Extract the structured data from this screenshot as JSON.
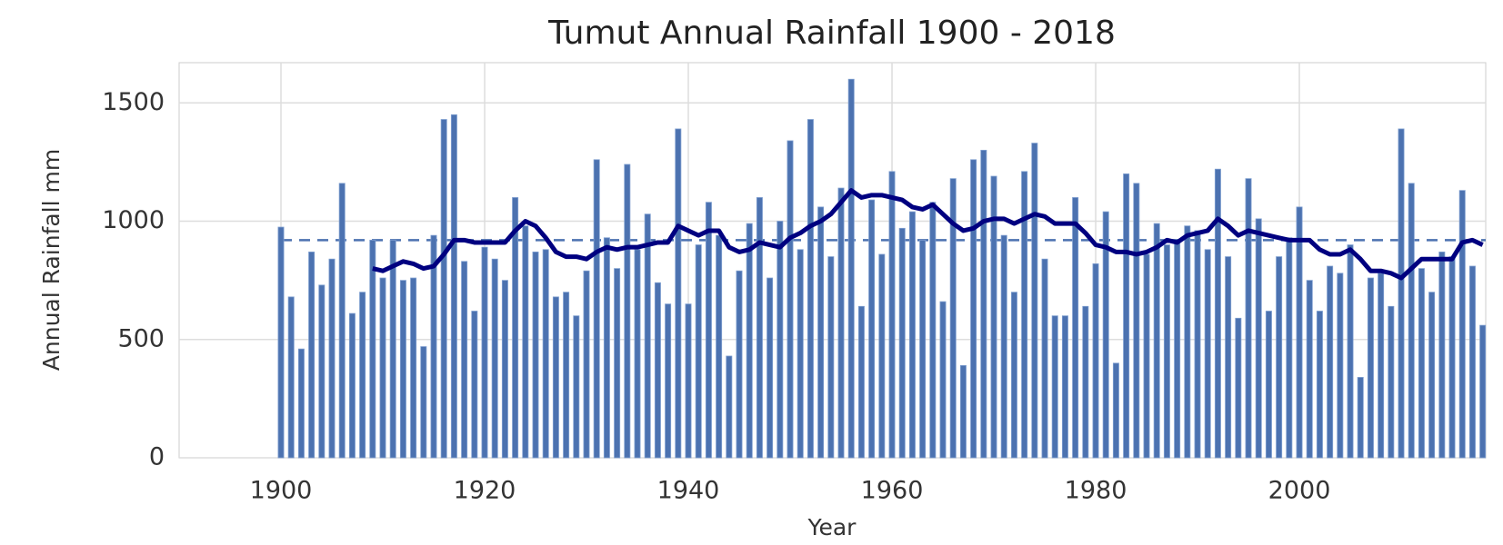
{
  "chart_data": {
    "type": "bar",
    "title": "Tumut Annual Rainfall 1900 - 2018",
    "xlabel": "Year",
    "ylabel": "Annual Rainfall mm",
    "x": [
      1900,
      1901,
      1902,
      1903,
      1904,
      1905,
      1906,
      1907,
      1908,
      1909,
      1910,
      1911,
      1912,
      1913,
      1914,
      1915,
      1916,
      1917,
      1918,
      1919,
      1920,
      1921,
      1922,
      1923,
      1924,
      1925,
      1926,
      1927,
      1928,
      1929,
      1930,
      1931,
      1932,
      1933,
      1934,
      1935,
      1936,
      1937,
      1938,
      1939,
      1940,
      1941,
      1942,
      1943,
      1944,
      1945,
      1946,
      1947,
      1948,
      1949,
      1950,
      1951,
      1952,
      1953,
      1954,
      1955,
      1956,
      1957,
      1958,
      1959,
      1960,
      1961,
      1962,
      1963,
      1964,
      1965,
      1966,
      1967,
      1968,
      1969,
      1970,
      1971,
      1972,
      1973,
      1974,
      1975,
      1976,
      1977,
      1978,
      1979,
      1980,
      1981,
      1982,
      1983,
      1984,
      1985,
      1986,
      1987,
      1988,
      1989,
      1990,
      1991,
      1992,
      1993,
      1994,
      1995,
      1996,
      1997,
      1998,
      1999,
      2000,
      2001,
      2002,
      2003,
      2004,
      2005,
      2006,
      2007,
      2008,
      2009,
      2010,
      2011,
      2012,
      2013,
      2014,
      2015,
      2016,
      2017,
      2018
    ],
    "series": [
      {
        "type": "bar",
        "color": "#4c72b0",
        "values": [
          975,
          680,
          460,
          870,
          730,
          840,
          1160,
          610,
          700,
          920,
          760,
          920,
          750,
          760,
          470,
          940,
          1430,
          1450,
          830,
          620,
          890,
          840,
          750,
          1100,
          980,
          870,
          880,
          680,
          700,
          600,
          790,
          1260,
          930,
          800,
          1240,
          880,
          1030,
          740,
          650,
          1390,
          650,
          900,
          1080,
          940,
          430,
          790,
          990,
          1100,
          760,
          1000,
          1340,
          880,
          1430,
          1060,
          850,
          1140,
          1600,
          640,
          1090,
          860,
          1210,
          970,
          1040,
          920,
          1080,
          660,
          1180,
          390,
          1260,
          1300,
          1190,
          940,
          700,
          1210,
          1330,
          840,
          600,
          600,
          1100,
          640,
          820,
          1040,
          400,
          1200,
          1160,
          860,
          990,
          900,
          920,
          980,
          960,
          880,
          1220,
          850,
          590,
          1180,
          1010,
          620,
          850,
          930,
          1060,
          750,
          620,
          810,
          780,
          900,
          340,
          760,
          780,
          640,
          1390,
          1160,
          800,
          700,
          870,
          850,
          1130,
          810,
          560
        ]
      },
      {
        "type": "line",
        "color": "#000080",
        "values": [
          null,
          null,
          null,
          null,
          null,
          null,
          null,
          null,
          null,
          800,
          790,
          810,
          830,
          820,
          800,
          810,
          860,
          920,
          920,
          910,
          910,
          910,
          910,
          960,
          1000,
          980,
          930,
          870,
          850,
          850,
          840,
          870,
          890,
          880,
          890,
          890,
          900,
          910,
          910,
          980,
          960,
          940,
          960,
          960,
          890,
          870,
          880,
          910,
          900,
          890,
          930,
          950,
          980,
          1000,
          1030,
          1080,
          1130,
          1100,
          1110,
          1110,
          1100,
          1090,
          1060,
          1050,
          1070,
          1030,
          990,
          960,
          970,
          1000,
          1010,
          1010,
          990,
          1010,
          1030,
          1020,
          990,
          990,
          990,
          950,
          900,
          890,
          870,
          870,
          860,
          870,
          890,
          920,
          910,
          940,
          950,
          960,
          1010,
          980,
          940,
          960,
          950,
          940,
          930,
          920,
          920,
          920,
          880,
          860,
          860,
          880,
          840,
          790,
          790,
          780,
          760,
          800,
          840,
          840,
          840,
          840,
          910,
          920,
          900
        ]
      }
    ],
    "hline": {
      "value": 920,
      "color": "#4c72b0",
      "dashed": true
    },
    "xlim": [
      1890,
      2018.3
    ],
    "xticks": [
      1900,
      1920,
      1940,
      1960,
      1980,
      2000
    ],
    "ylim": [
      0,
      1670
    ],
    "yticks": [
      0,
      500,
      1000,
      1500
    ],
    "grid": true
  }
}
